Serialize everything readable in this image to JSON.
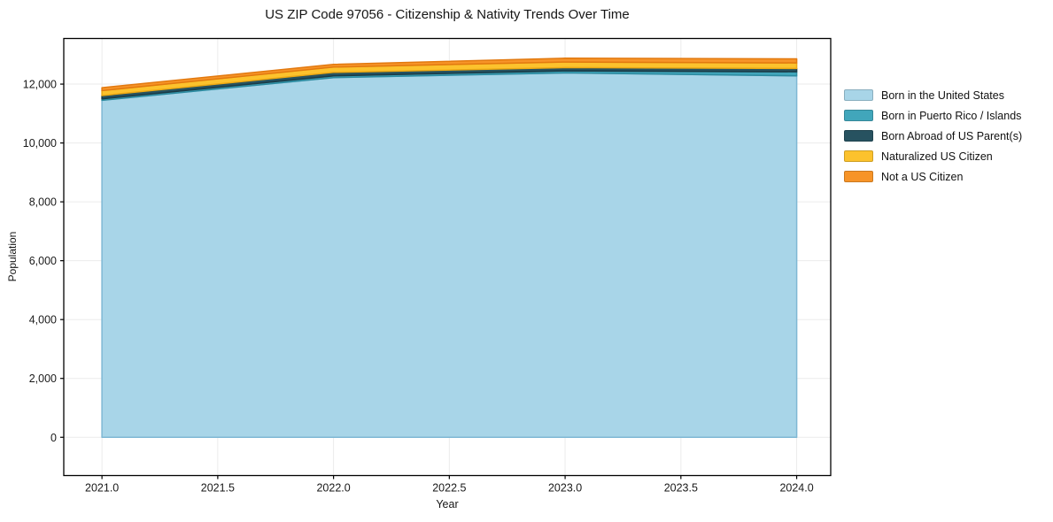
{
  "figure": {
    "background": "#ffffff"
  },
  "chart_data": {
    "type": "area",
    "stacked": true,
    "title": "US ZIP Code 97056 - Citizenship & Nativity Trends Over Time",
    "xlabel": "Year",
    "ylabel": "Population",
    "x": [
      2021,
      2022,
      2023,
      2024
    ],
    "series": [
      {
        "name": "Born in the United States",
        "color": "#a8d5e8",
        "edge": "#7fb8d4",
        "values": [
          11450,
          12220,
          12380,
          12280
        ]
      },
      {
        "name": "Born in Puerto Rico / Islands",
        "color": "#41a6bb",
        "edge": "#2d8ba0",
        "values": [
          50,
          60,
          70,
          140
        ]
      },
      {
        "name": "Born Abroad of US Parent(s)",
        "color": "#275260",
        "edge": "#1a3b46",
        "values": [
          110,
          120,
          110,
          110
        ]
      },
      {
        "name": "Naturalized US Citizen",
        "color": "#fcc22d",
        "edge": "#eda913",
        "values": [
          170,
          180,
          190,
          190
        ]
      },
      {
        "name": "Not a US Citizen",
        "color": "#f79428",
        "edge": "#e2790f",
        "values": [
          100,
          90,
          130,
          140
        ]
      }
    ],
    "xticks": [
      2021.0,
      2021.5,
      2022.0,
      2022.5,
      2023.0,
      2023.5,
      2024.0
    ],
    "xtick_labels": [
      "2021.0",
      "2021.5",
      "2022.0",
      "2022.5",
      "2023.0",
      "2023.5",
      "2024.0"
    ],
    "yticks": [
      0,
      2000,
      4000,
      6000,
      8000,
      10000,
      12000
    ],
    "ytick_labels": [
      "0",
      "2,000",
      "4,000",
      "6,000",
      "8,000",
      "10,000",
      "12,000"
    ],
    "xlim": [
      2020.835,
      2024.147
    ],
    "ylim": [
      -1300,
      13550
    ],
    "grid": true,
    "grid_color": "#ebebeb",
    "spine_color": "#000000",
    "tick_label_color": "#1a1a1a",
    "legend_position": "right"
  }
}
